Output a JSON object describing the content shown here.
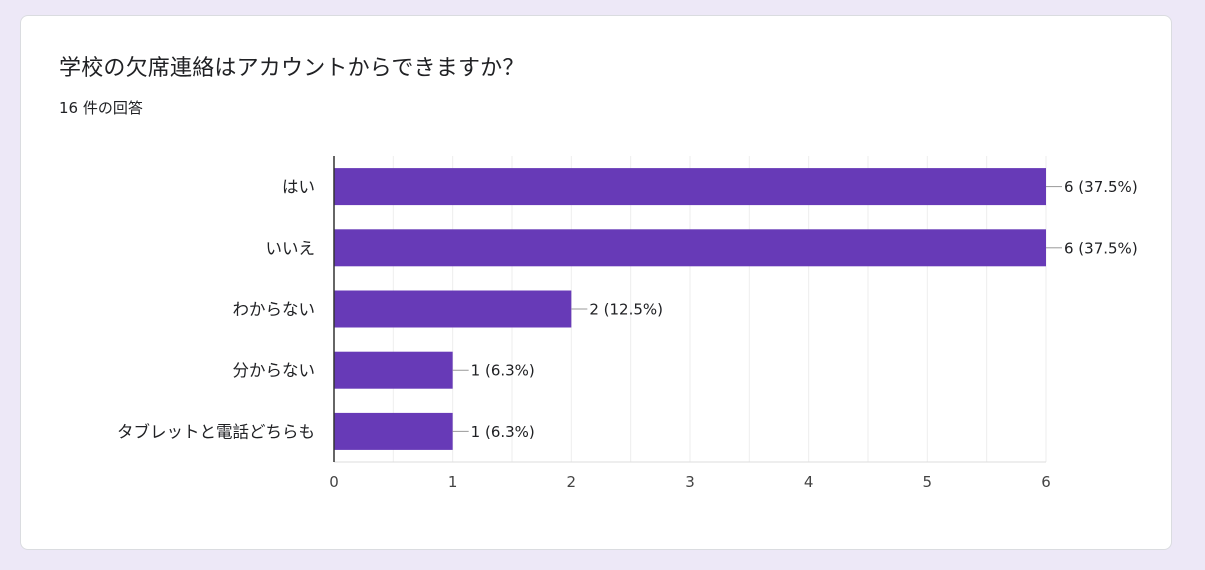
{
  "question_title": "学校の欠席連絡はアカウントからできますか？",
  "response_count": "16 件の回答",
  "colors": {
    "bar": "#673ab7",
    "background": "#ede8f7",
    "card": "#ffffff",
    "grid": "#eeeeee",
    "axis": "#333333",
    "text": "#202124",
    "tick_text": "#444444"
  },
  "chart_data": {
    "type": "bar",
    "orientation": "horizontal",
    "categories": [
      "はい",
      "いいえ",
      "わからない",
      "分からない",
      "タブレットと電話どちらも"
    ],
    "values": [
      6,
      6,
      2,
      1,
      1
    ],
    "data_labels": [
      "6 (37.5%)",
      "6 (37.5%)",
      "2 (12.5%)",
      "1 (6.3%)",
      "1 (6.3%)"
    ],
    "xlim": [
      0,
      6
    ],
    "x_ticks": [
      0,
      1,
      2,
      3,
      4,
      5,
      6
    ],
    "grid": true,
    "legend": "none"
  }
}
